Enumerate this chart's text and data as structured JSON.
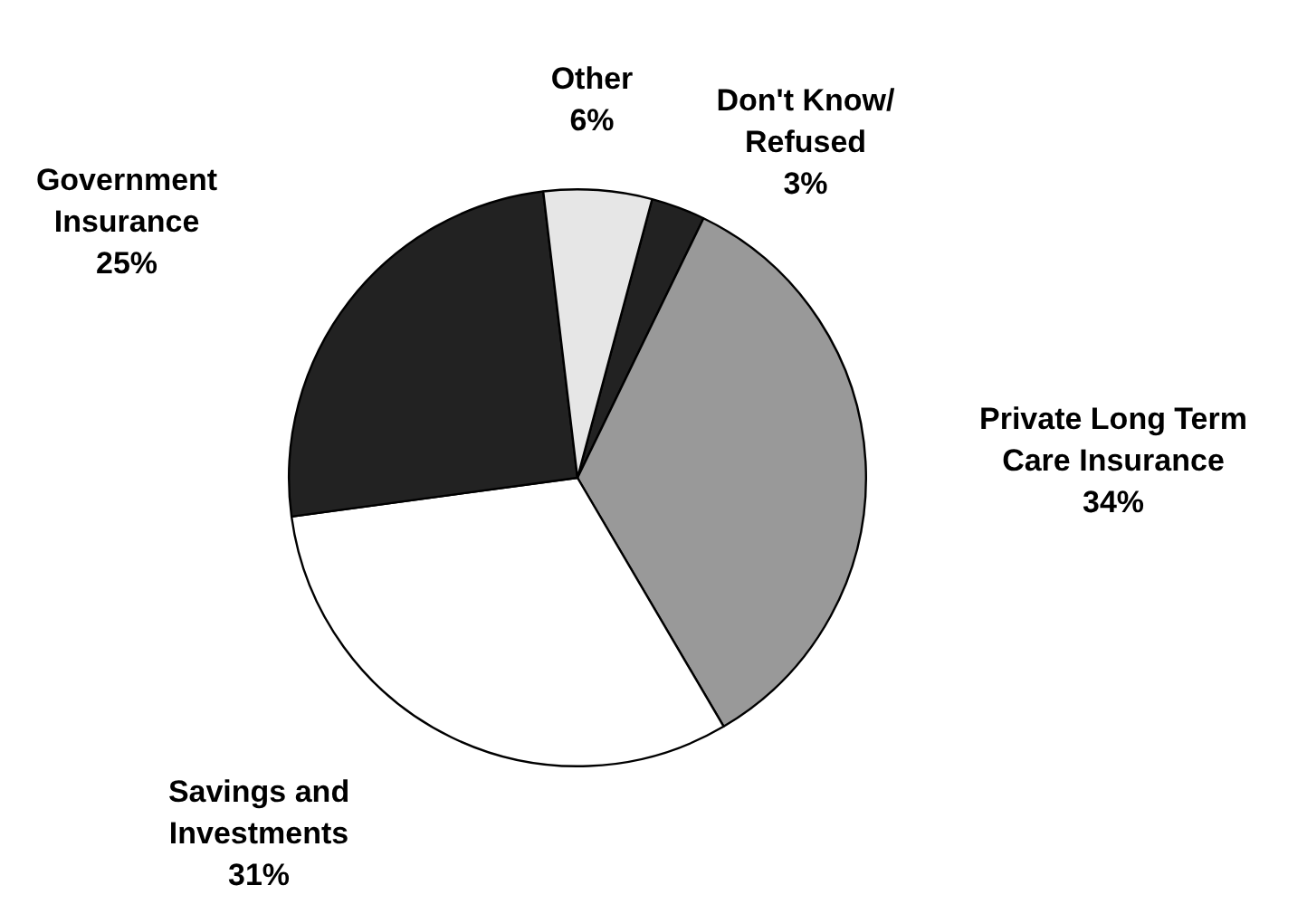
{
  "chart_data": {
    "type": "pie",
    "categories": [
      "Don't Know/ Refused",
      "Private Long Term Care Insurance",
      "Savings and Investments",
      "Government Insurance",
      "Other"
    ],
    "values": [
      3,
      34,
      31,
      25,
      6
    ],
    "value_labels": [
      "3%",
      "34%",
      "31%",
      "25%",
      "6%"
    ],
    "colors": [
      "#222222",
      "#999999",
      "#ffffff",
      "#222222",
      "#e6e6e6"
    ],
    "legend": false
  }
}
